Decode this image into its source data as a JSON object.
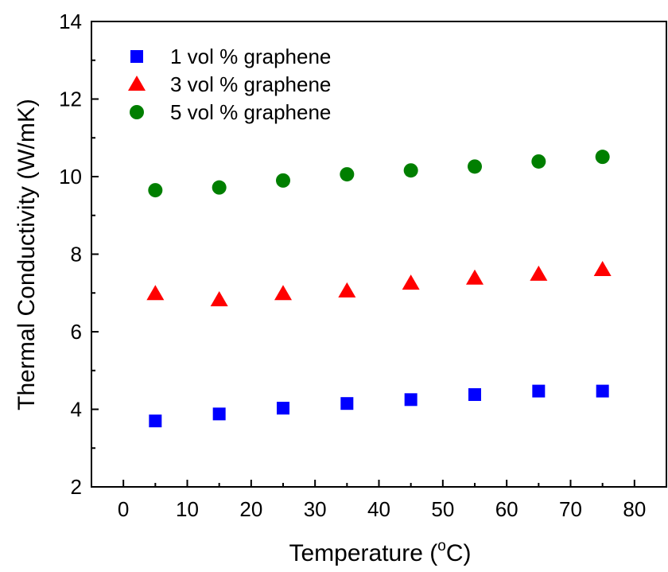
{
  "chart_data": {
    "type": "scatter",
    "xlabel": "Temperature (",
    "xlabel_sup": "o",
    "xlabel_unit": "C)",
    "ylabel": "Thermal Conductivity (W/mK)",
    "xlim": [
      -5,
      85
    ],
    "ylim": [
      2,
      14
    ],
    "xticks": [
      "0",
      "10",
      "20",
      "30",
      "40",
      "50",
      "60",
      "70",
      "80"
    ],
    "yticks": [
      "2",
      "4",
      "6",
      "8",
      "10",
      "12",
      "14"
    ],
    "x": [
      5,
      15,
      25,
      35,
      45,
      55,
      65,
      75
    ],
    "grid": false,
    "legend_position": "top-left",
    "series": [
      {
        "name": "1 vol % graphene",
        "marker": "square",
        "color": "#0000ff",
        "values": [
          3.7,
          3.88,
          4.03,
          4.15,
          4.25,
          4.38,
          4.47,
          4.47
        ]
      },
      {
        "name": "3 vol % graphene",
        "marker": "triangle",
        "color": "#ff0000",
        "values": [
          6.98,
          6.82,
          6.98,
          7.05,
          7.25,
          7.38,
          7.48,
          7.6
        ]
      },
      {
        "name": "5 vol % graphene",
        "marker": "circle",
        "color": "#007f00",
        "values": [
          9.65,
          9.72,
          9.9,
          10.06,
          10.16,
          10.26,
          10.39,
          10.51
        ]
      }
    ]
  }
}
